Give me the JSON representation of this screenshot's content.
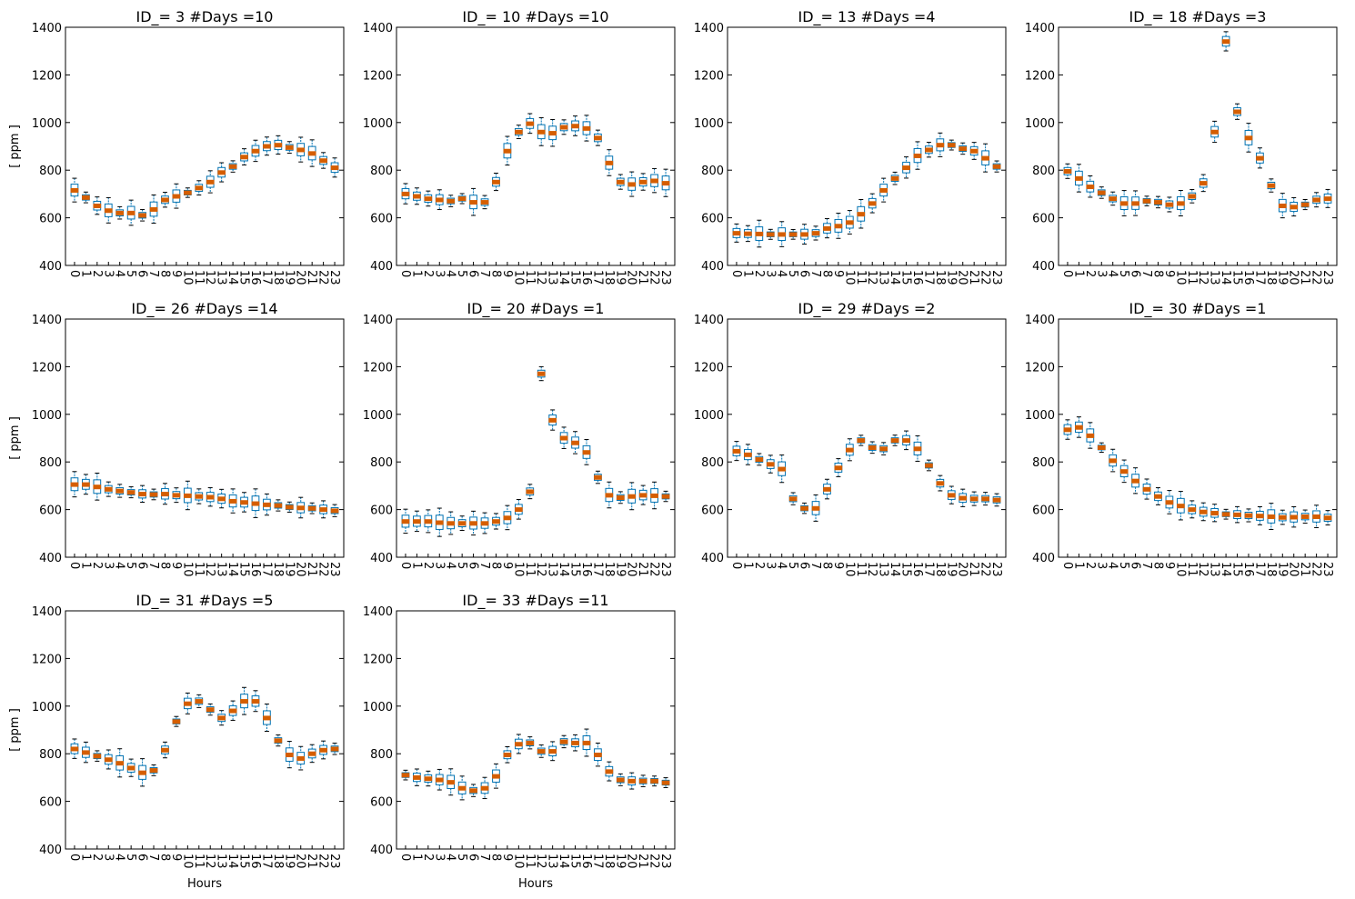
{
  "chart_data": [
    {
      "type": "box",
      "title": "ID_= 3 #Days =10",
      "ylabel": "[ ppm ]",
      "xlabel": "",
      "ylim": [
        400,
        1400
      ],
      "median": [
        715,
        685,
        650,
        630,
        620,
        620,
        610,
        635,
        675,
        690,
        705,
        725,
        750,
        790,
        815,
        855,
        880,
        900,
        905,
        895,
        885,
        870,
        840,
        810
      ]
    },
    {
      "type": "box",
      "title": "ID_= 10 #Days =10",
      "ylabel": "",
      "xlabel": "",
      "ylim": [
        400,
        1400
      ],
      "median": [
        700,
        690,
        680,
        675,
        670,
        680,
        665,
        665,
        750,
        880,
        960,
        995,
        960,
        955,
        980,
        985,
        975,
        935,
        830,
        750,
        740,
        750,
        755,
        745
      ]
    },
    {
      "type": "box",
      "title": "ID_= 13 #Days =4",
      "ylabel": "",
      "xlabel": "",
      "ylim": [
        400,
        1400
      ],
      "median": [
        535,
        533,
        532,
        530,
        530,
        530,
        530,
        535,
        555,
        565,
        580,
        615,
        660,
        715,
        765,
        810,
        860,
        885,
        905,
        905,
        890,
        880,
        850,
        815
      ]
    },
    {
      "type": "box",
      "title": "ID_= 18 #Days =3",
      "ylabel": "",
      "xlabel": "",
      "ylim": [
        400,
        1400
      ],
      "median": [
        795,
        765,
        730,
        705,
        680,
        660,
        660,
        670,
        665,
        655,
        660,
        690,
        745,
        960,
        1340,
        1045,
        935,
        850,
        735,
        650,
        645,
        655,
        675,
        680
      ]
    },
    {
      "type": "box",
      "title": "ID_= 26 #Days =14",
      "ylabel": "[ ppm ]",
      "xlabel": "",
      "ylim": [
        400,
        1400
      ],
      "median": [
        705,
        705,
        695,
        685,
        678,
        672,
        665,
        663,
        665,
        660,
        658,
        655,
        652,
        645,
        635,
        630,
        625,
        620,
        617,
        610,
        607,
        605,
        600,
        595
      ]
    },
    {
      "type": "box",
      "title": "ID_= 20 #Days =1",
      "ylabel": "",
      "xlabel": "",
      "ylim": [
        400,
        1400
      ],
      "median": [
        550,
        550,
        550,
        545,
        542,
        542,
        542,
        542,
        550,
        565,
        600,
        675,
        1170,
        975,
        900,
        880,
        840,
        735,
        660,
        650,
        655,
        660,
        658,
        655
      ]
    },
    {
      "type": "box",
      "title": "ID_= 29 #Days =2",
      "ylabel": "",
      "xlabel": "",
      "ylim": [
        400,
        1400
      ],
      "median": [
        845,
        830,
        810,
        790,
        770,
        645,
        605,
        605,
        685,
        775,
        850,
        890,
        860,
        855,
        890,
        890,
        855,
        785,
        710,
        660,
        648,
        645,
        645,
        640
      ]
    },
    {
      "type": "box",
      "title": "ID_= 30 #Days =1",
      "ylabel": "",
      "xlabel": "",
      "ylim": [
        400,
        1400
      ],
      "median": [
        935,
        945,
        910,
        860,
        805,
        760,
        720,
        685,
        655,
        630,
        615,
        600,
        590,
        585,
        580,
        578,
        575,
        573,
        570,
        567,
        568,
        570,
        570,
        565
      ]
    },
    {
      "type": "box",
      "title": "ID_= 31 #Days =5",
      "ylabel": "[ ppm ]",
      "xlabel": "Hours",
      "ylim": [
        400,
        1400
      ],
      "median": [
        820,
        805,
        790,
        775,
        760,
        740,
        720,
        730,
        815,
        935,
        1010,
        1020,
        985,
        950,
        980,
        1020,
        1020,
        950,
        855,
        795,
        780,
        800,
        815,
        820
      ]
    },
    {
      "type": "box",
      "title": "ID_= 33 #Days =11",
      "ylabel": "",
      "xlabel": "Hours",
      "ylim": [
        400,
        1400
      ],
      "median": [
        710,
        700,
        695,
        690,
        680,
        655,
        645,
        655,
        705,
        795,
        840,
        845,
        810,
        810,
        850,
        845,
        845,
        795,
        725,
        690,
        685,
        685,
        685,
        678
      ]
    }
  ],
  "x_categories": [
    "0",
    "1",
    "2",
    "3",
    "4",
    "5",
    "6",
    "7",
    "8",
    "9",
    "10",
    "11",
    "12",
    "13",
    "14",
    "15",
    "16",
    "17",
    "18",
    "19",
    "20",
    "21",
    "22",
    "23"
  ],
  "y_ticks": [
    400,
    600,
    800,
    1000,
    1200,
    1400
  ],
  "colors": {
    "box": "#0072b2",
    "median": "#d55e00",
    "axis": "#000000"
  }
}
